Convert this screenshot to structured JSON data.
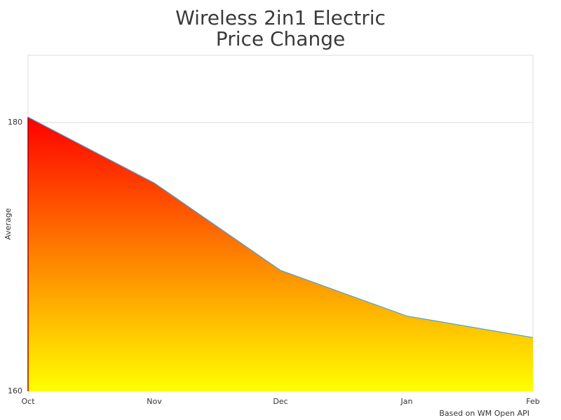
{
  "chart_data": {
    "type": "area",
    "title": [
      "Wireless 2in1 Electric",
      "Price Change"
    ],
    "y_label": "Average",
    "source": "Based on WM Open API",
    "categories": [
      "Oct",
      "Nov",
      "Dec",
      "Jan",
      "Feb"
    ],
    "values": [
      180.4,
      175.5,
      169.0,
      165.6,
      164.0
    ],
    "ylim": [
      160,
      185
    ],
    "yticks": [
      160,
      180
    ],
    "grid": true,
    "gradient": [
      "#ff0000",
      "#ffff00"
    ],
    "line_color": "#4aa3d8"
  }
}
